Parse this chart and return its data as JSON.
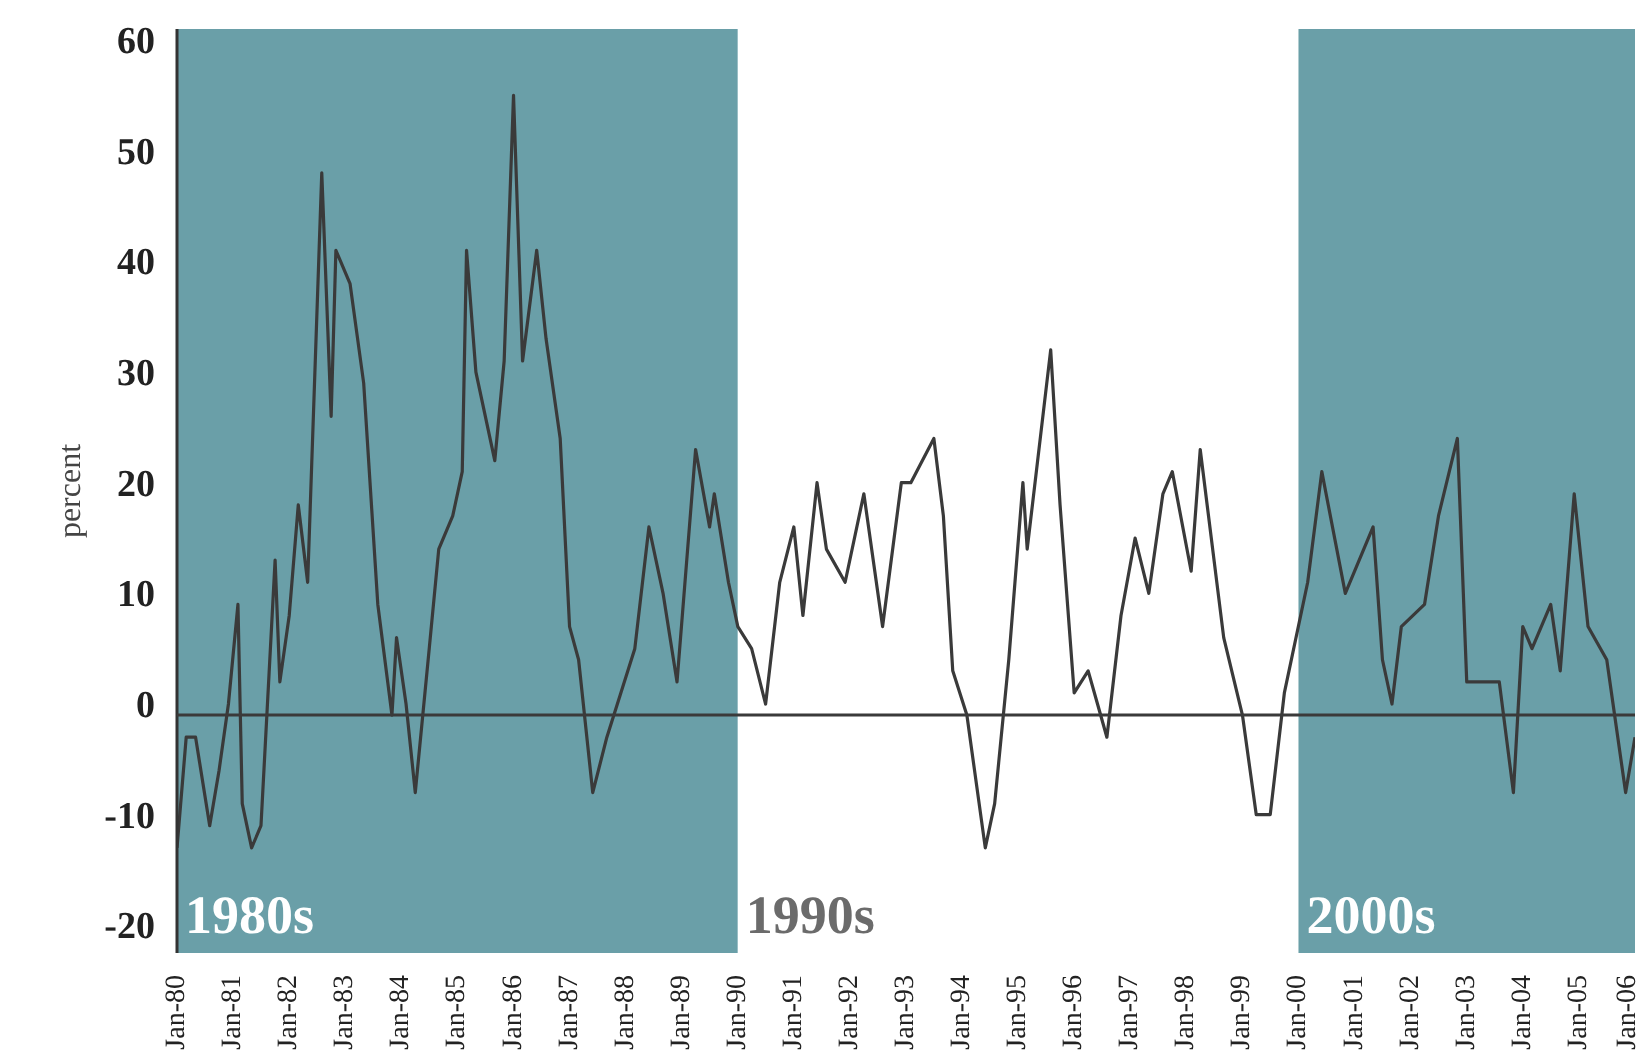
{
  "chart_data": {
    "type": "line",
    "ylabel": "percent",
    "x": [
      "1980-01",
      "1980-03",
      "1980-05",
      "1980-08",
      "1980-10",
      "1980-12",
      "1981-02",
      "1981-03",
      "1981-05",
      "1981-07",
      "1981-10",
      "1981-11",
      "1982-01",
      "1982-03",
      "1982-05",
      "1982-08",
      "1982-10",
      "1982-11",
      "1983-02",
      "1983-05",
      "1983-08",
      "1983-11",
      "1983-12",
      "1984-02",
      "1984-04",
      "1984-07",
      "1984-09",
      "1984-12",
      "1985-02",
      "1985-03",
      "1985-05",
      "1985-09",
      "1985-11",
      "1986-01",
      "1986-03",
      "1986-06",
      "1986-08",
      "1986-11",
      "1987-01",
      "1987-03",
      "1987-06",
      "1987-09",
      "1987-12",
      "1988-03",
      "1988-06",
      "1988-09",
      "1988-12",
      "1989-04",
      "1989-07",
      "1989-08",
      "1989-11",
      "1990-01",
      "1990-04",
      "1990-07",
      "1990-10",
      "1991-01",
      "1991-03",
      "1991-06",
      "1991-08",
      "1991-12",
      "1992-04",
      "1992-08",
      "1992-12",
      "1993-02",
      "1993-07",
      "1993-09",
      "1993-11",
      "1994-02",
      "1994-06",
      "1994-08",
      "1994-11",
      "1995-02",
      "1995-03",
      "1995-08",
      "1995-10",
      "1996-01",
      "1996-04",
      "1996-06",
      "1996-08",
      "1996-11",
      "1997-02",
      "1997-05",
      "1997-08",
      "1997-10",
      "1998-02",
      "1998-04",
      "1998-09",
      "1999-01",
      "1999-04",
      "1999-07",
      "1999-10",
      "2000-03",
      "2000-06",
      "2000-11",
      "2001-05",
      "2001-07",
      "2001-09",
      "2001-11",
      "2002-04",
      "2002-07",
      "2002-11",
      "2003-01",
      "2003-08",
      "2003-11",
      "2004-01",
      "2004-03",
      "2004-07",
      "2004-09",
      "2004-12",
      "2005-03",
      "2005-07",
      "2005-11",
      "2006-01"
    ],
    "series": [
      {
        "color": "#3a3a3a",
        "values": [
          -13,
          -3,
          -3,
          -11,
          -6,
          0,
          9,
          -9,
          -13,
          -11,
          13,
          2,
          8,
          18,
          11,
          48,
          26,
          41,
          38,
          29,
          9,
          -1,
          6,
          0,
          -8,
          5,
          14,
          17,
          21,
          41,
          30,
          22,
          31,
          55,
          31,
          41,
          33,
          24,
          7,
          4,
          -8,
          -3,
          1,
          5,
          16,
          10,
          2,
          23,
          16,
          19,
          11,
          7,
          5,
          0,
          11,
          16,
          8,
          20,
          14,
          11,
          19,
          7,
          20,
          20,
          24,
          17,
          3,
          -1,
          -13,
          -9,
          4,
          20,
          14,
          32,
          18,
          1,
          3,
          0,
          -3,
          8,
          15,
          10,
          19,
          21,
          12,
          23,
          6,
          -1,
          -10,
          -10,
          1,
          11,
          21,
          10,
          16,
          4,
          0,
          7,
          9,
          17,
          24,
          2,
          2,
          -8,
          7,
          5,
          9,
          3,
          19,
          7,
          4,
          -8,
          -3
        ]
      }
    ],
    "xlim": [
      "1980-01",
      "2006-01"
    ],
    "xticks": [
      {
        "value": "1980-01",
        "label": "Jan-80"
      },
      {
        "value": "1981-01",
        "label": "Jan-81"
      },
      {
        "value": "1982-01",
        "label": "Jan-82"
      },
      {
        "value": "1983-01",
        "label": "Jan-83"
      },
      {
        "value": "1984-01",
        "label": "Jan-84"
      },
      {
        "value": "1985-01",
        "label": "Jan-85"
      },
      {
        "value": "1986-01",
        "label": "Jan-86"
      },
      {
        "value": "1987-01",
        "label": "Jan-87"
      },
      {
        "value": "1988-01",
        "label": "Jan-88"
      },
      {
        "value": "1989-01",
        "label": "Jan-89"
      },
      {
        "value": "1990-01",
        "label": "Jan-90"
      },
      {
        "value": "1991-01",
        "label": "Jan-91"
      },
      {
        "value": "1992-01",
        "label": "Jan-92"
      },
      {
        "value": "1993-01",
        "label": "Jan-93"
      },
      {
        "value": "1994-01",
        "label": "Jan-94"
      },
      {
        "value": "1995-01",
        "label": "Jan-95"
      },
      {
        "value": "1996-01",
        "label": "Jan-96"
      },
      {
        "value": "1997-01",
        "label": "Jan-97"
      },
      {
        "value": "1998-01",
        "label": "Jan-98"
      },
      {
        "value": "1999-01",
        "label": "Jan-99"
      },
      {
        "value": "2000-01",
        "label": "Jan-00"
      },
      {
        "value": "2001-01",
        "label": "Jan-01"
      },
      {
        "value": "2002-01",
        "label": "Jan-02"
      },
      {
        "value": "2003-01",
        "label": "Jan-03"
      },
      {
        "value": "2004-01",
        "label": "Jan-04"
      },
      {
        "value": "2005-01",
        "label": "Jan-05"
      },
      {
        "value": "2006-01",
        "label": "Jan-06"
      }
    ],
    "ylim": [
      -22.5,
      61
    ],
    "yticks": [
      -20,
      -10,
      0,
      10,
      20,
      30,
      40,
      50,
      60
    ],
    "ref_lines": [
      {
        "axis": "y",
        "value": -1,
        "color": "#3a3a3a"
      }
    ],
    "bands": [
      {
        "axis": "x",
        "from": "1980-01",
        "to": "1990-01",
        "label": "1980s",
        "color": "#6a9fa8"
      },
      {
        "axis": "x",
        "from": "1990-01",
        "to": "2000-01",
        "label": "1990s",
        "color": "#ffffff"
      },
      {
        "axis": "x",
        "from": "2000-01",
        "to": "2006-01",
        "label": "2000s",
        "color": "#6a9fa8"
      }
    ],
    "grid": false,
    "line_style": "solid",
    "marker": "none"
  }
}
